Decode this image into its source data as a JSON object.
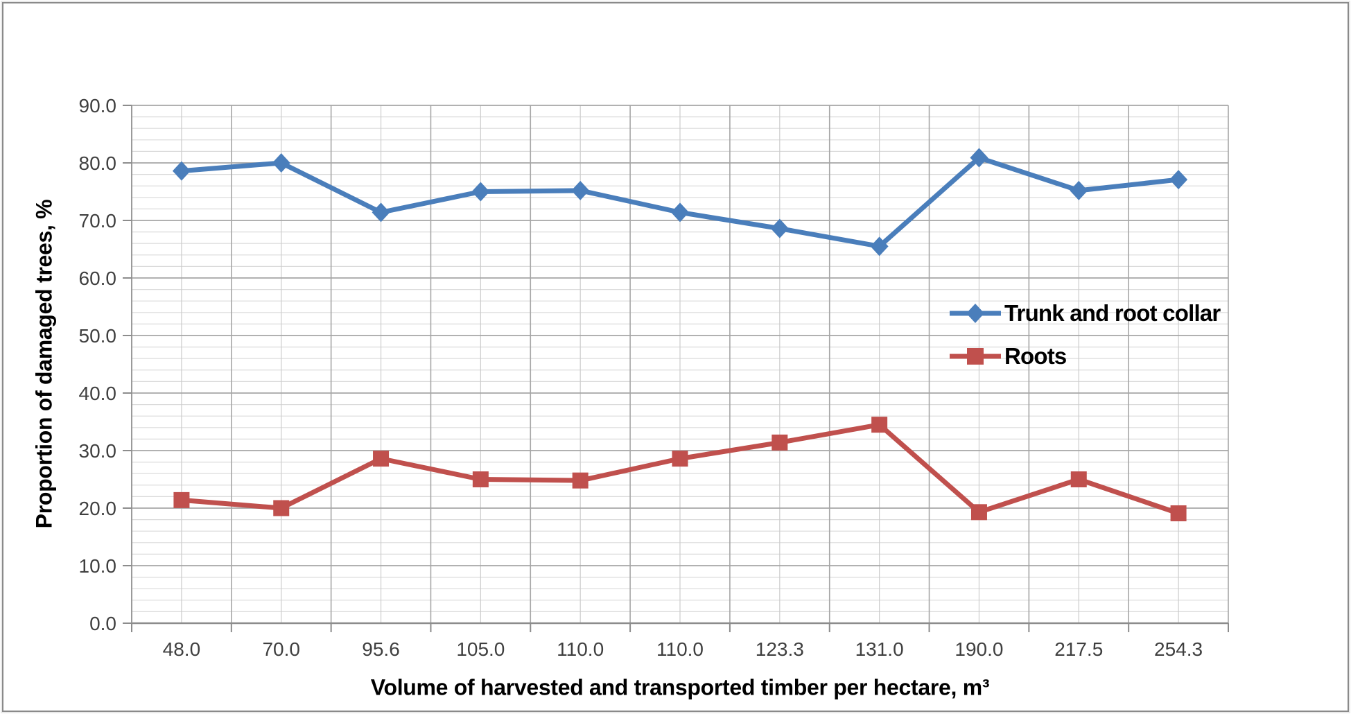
{
  "chart_data": {
    "type": "line",
    "title": "",
    "xlabel": "Volume of harvested and transported timber per hectare, m³",
    "ylabel": "Proportion of damaged trees, %",
    "categories": [
      "48.0",
      "70.0",
      "95.6",
      "105.0",
      "110.0",
      "110.0",
      "123.3",
      "131.0",
      "190.0",
      "217.5",
      "254.3"
    ],
    "ylim": [
      0,
      90
    ],
    "ytick_step": 10,
    "yminor_step": 2,
    "ytick_labels": [
      "0.0",
      "10.0",
      "20.0",
      "30.0",
      "40.0",
      "50.0",
      "60.0",
      "70.0",
      "80.0",
      "90.0"
    ],
    "grid": "major-and-minor, horizontal and vertical",
    "legend_position": "inside-right",
    "series": [
      {
        "name": "Trunk and root collar",
        "color": "#4a7ebb",
        "marker": "diamond",
        "values": [
          78.6,
          80.0,
          71.4,
          75.0,
          75.2,
          71.4,
          68.6,
          65.5,
          80.9,
          75.2,
          77.1
        ]
      },
      {
        "name": "Roots",
        "color": "#c0504d",
        "marker": "square",
        "values": [
          21.4,
          20.0,
          28.6,
          25.0,
          24.8,
          28.6,
          31.4,
          34.5,
          19.3,
          25.0,
          19.1
        ]
      }
    ]
  }
}
